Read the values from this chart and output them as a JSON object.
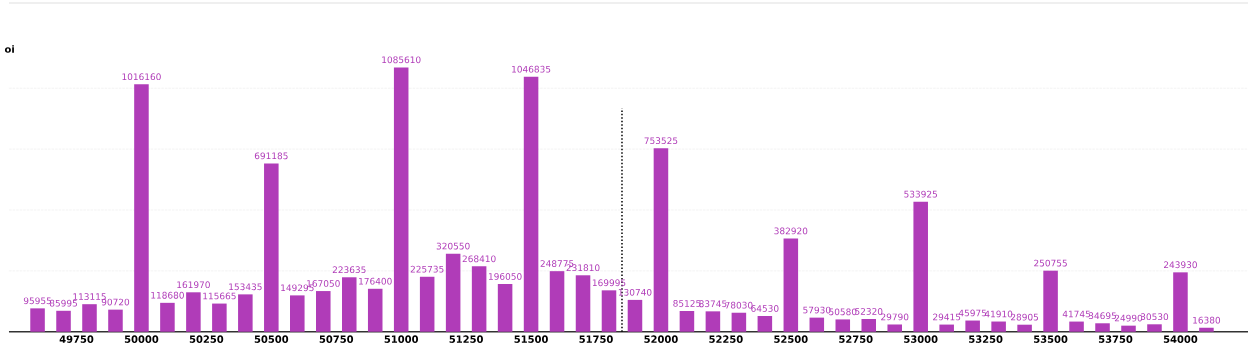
{
  "chart_data": {
    "type": "bar",
    "ylabel": "oi",
    "x": [
      49600,
      49700,
      49800,
      49900,
      50000,
      50100,
      50200,
      50300,
      50400,
      50500,
      50600,
      50700,
      50800,
      50900,
      51000,
      51100,
      51200,
      51300,
      51400,
      51500,
      51600,
      51700,
      51800,
      51900,
      52000,
      52100,
      52200,
      52300,
      52400,
      52500,
      52600,
      52700,
      52800,
      52900,
      53000,
      53100,
      53200,
      53300,
      53400,
      53500,
      53600,
      53700,
      53800,
      53900,
      54000,
      54100
    ],
    "values": [
      95955,
      85995,
      113115,
      90720,
      1016160,
      118680,
      161970,
      115665,
      153435,
      691185,
      149295,
      167050,
      223635,
      176400,
      1085610,
      225735,
      320550,
      268410,
      196050,
      1046835,
      248775,
      231810,
      169995,
      130740,
      753525,
      85125,
      83745,
      78030,
      64530,
      382920,
      57930,
      50580,
      52320,
      29790,
      533925,
      29415,
      45975,
      41910,
      28905,
      250755,
      41745,
      34695,
      24990,
      30530,
      243930,
      16380
    ],
    "color": "#b03cb8",
    "data_labels": true,
    "xlim": [
      49490,
      54260
    ],
    "xticks": [
      49750,
      50000,
      50250,
      50500,
      50750,
      51000,
      51250,
      51500,
      51750,
      52000,
      52250,
      52500,
      52750,
      53000,
      53250,
      53500,
      53750,
      54000
    ],
    "ylim": [
      0,
      1350000
    ],
    "yticks": [
      {
        "value": 250000,
        "label": null
      },
      {
        "value": 500000,
        "label": null
      },
      {
        "value": 750000,
        "label": null
      },
      {
        "value": 1000000,
        "label": null
      }
    ],
    "grid": "y",
    "tick_labels": "x",
    "ref_lines": [
      {
        "axis": "x",
        "value": 51850,
        "line_style": "dotted",
        "color": "#000000"
      }
    ]
  }
}
